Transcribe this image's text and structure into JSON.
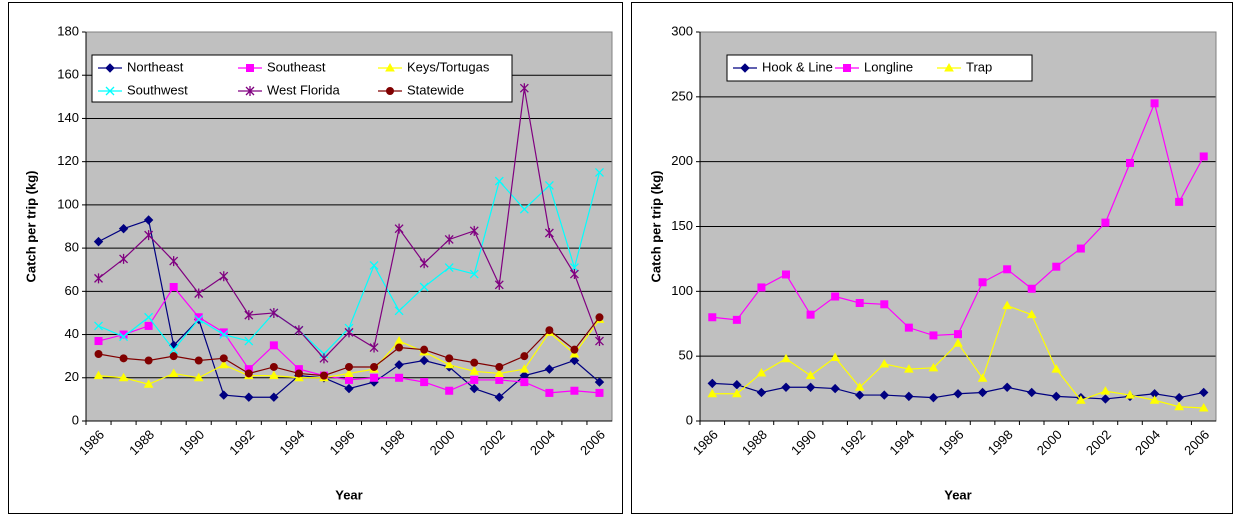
{
  "chart_data": [
    {
      "type": "line",
      "y_label": "Catch per trip (kg)",
      "x_label": "Year",
      "categories": [
        "1986",
        null,
        "1988",
        null,
        "1990",
        null,
        "1992",
        null,
        "1994",
        null,
        "1996",
        null,
        "1998",
        null,
        "2000",
        null,
        "2002",
        null,
        "2004",
        null,
        "2006"
      ],
      "ylim": [
        0,
        180
      ],
      "yticks": [
        0,
        20,
        40,
        60,
        80,
        100,
        120,
        140,
        160,
        180
      ],
      "grid": true,
      "plot_background": "#c0c0c0",
      "series": [
        {
          "name": "Northeast",
          "color": "#000080",
          "marker": "diamond",
          "values": [
            83,
            89,
            93,
            35,
            47,
            12,
            11,
            11,
            21,
            20,
            15,
            18,
            26,
            28,
            25,
            15,
            11,
            21,
            24,
            28,
            18
          ]
        },
        {
          "name": "Southeast",
          "color": "#ff00ff",
          "marker": "square",
          "values": [
            37,
            40,
            44,
            62,
            48,
            41,
            24,
            35,
            24,
            21,
            19,
            20,
            20,
            18,
            14,
            19,
            19,
            18,
            13,
            14,
            13
          ]
        },
        {
          "name": "Keys/Tortugas",
          "color": "#ffff00",
          "marker": "triangle",
          "values": [
            21,
            20,
            17,
            22,
            20,
            26,
            21,
            21,
            20,
            20,
            22,
            24,
            37,
            32,
            26,
            23,
            22,
            24,
            41,
            31,
            47
          ]
        },
        {
          "name": "Southwest",
          "color": "#00ffff",
          "marker": "x",
          "values": [
            44,
            39,
            48,
            33,
            47,
            40,
            37,
            50,
            42,
            31,
            43,
            72,
            51,
            62,
            71,
            68,
            111,
            98,
            109,
            71,
            115
          ]
        },
        {
          "name": "West Florida",
          "color": "#800080",
          "marker": "star",
          "values": [
            66,
            75,
            86,
            74,
            59,
            67,
            49,
            50,
            42,
            29,
            41,
            34,
            89,
            73,
            84,
            88,
            63,
            154,
            87,
            68,
            37
          ]
        },
        {
          "name": "Statewide",
          "color": "#800000",
          "marker": "circle",
          "values": [
            31,
            29,
            28,
            30,
            28,
            29,
            22,
            25,
            22,
            21,
            25,
            25,
            34,
            33,
            29,
            27,
            25,
            30,
            42,
            33,
            48
          ]
        }
      ]
    },
    {
      "type": "line",
      "y_label": "Catch per trip (kg)",
      "x_label": "Year",
      "categories": [
        "1986",
        null,
        "1988",
        null,
        "1990",
        null,
        "1992",
        null,
        "1994",
        null,
        "1996",
        null,
        "1998",
        null,
        "2000",
        null,
        "2002",
        null,
        "2004",
        null,
        "2006"
      ],
      "ylim": [
        0,
        300
      ],
      "yticks": [
        0,
        50,
        100,
        150,
        200,
        250,
        300
      ],
      "grid": true,
      "plot_background": "#c0c0c0",
      "series": [
        {
          "name": "Hook & Line",
          "color": "#000080",
          "marker": "diamond",
          "values": [
            29,
            28,
            22,
            26,
            26,
            25,
            20,
            20,
            19,
            18,
            21,
            22,
            26,
            22,
            19,
            18,
            17,
            19,
            21,
            18,
            22
          ]
        },
        {
          "name": "Longline",
          "color": "#ff00ff",
          "marker": "square",
          "values": [
            80,
            78,
            103,
            113,
            82,
            96,
            91,
            90,
            72,
            66,
            67,
            107,
            117,
            102,
            119,
            133,
            153,
            199,
            245,
            169,
            204
          ]
        },
        {
          "name": "Trap",
          "color": "#ffff00",
          "marker": "triangle",
          "values": [
            21,
            21,
            37,
            48,
            35,
            49,
            26,
            44,
            40,
            41,
            60,
            33,
            89,
            82,
            40,
            16,
            23,
            20,
            16,
            11,
            10
          ]
        }
      ]
    }
  ]
}
